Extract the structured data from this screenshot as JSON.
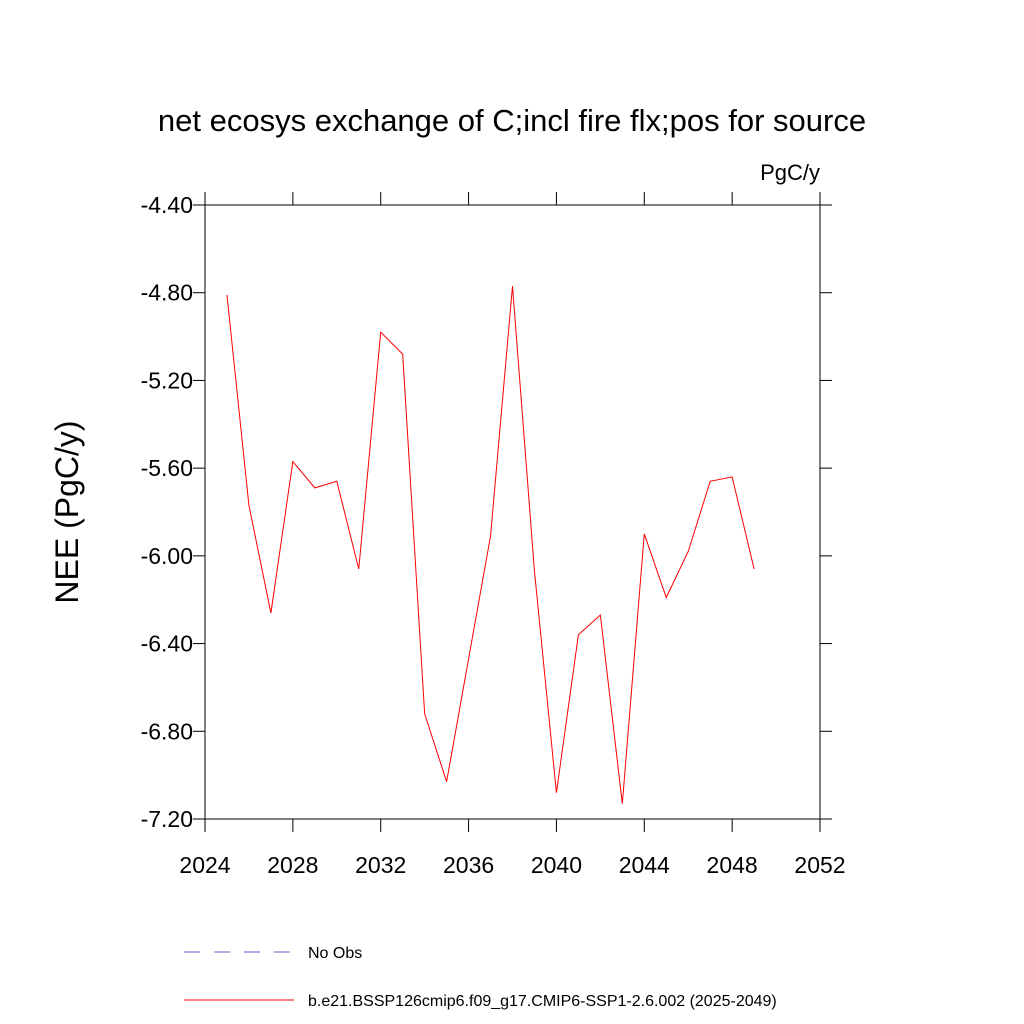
{
  "chart_data": {
    "type": "line",
    "title": "net ecosys exchange of C;incl fire flx;pos for source",
    "units": "PgC/y",
    "y_label": "NEE  (PgC/y)",
    "x": [
      2025,
      2026,
      2027,
      2028,
      2029,
      2030,
      2031,
      2032,
      2033,
      2034,
      2035,
      2036,
      2037,
      2038,
      2039,
      2040,
      2041,
      2042,
      2043,
      2044,
      2045,
      2046,
      2047,
      2048,
      2049
    ],
    "series": [
      {
        "name": "No Obs",
        "color": "#6a5acd",
        "dashed": true,
        "values": [
          null,
          null,
          null,
          null,
          null,
          null,
          null,
          null,
          null,
          null,
          null,
          null,
          null,
          null,
          null,
          null,
          null,
          null,
          null,
          null,
          null,
          null,
          null,
          null,
          null
        ]
      },
      {
        "name": "b.e21.BSSP126cmip6.f09_g17.CMIP6-SSP1-2.6.002 (2025-2049)",
        "color": "#ff0000",
        "dashed": false,
        "values": [
          -4.81,
          -5.77,
          -6.26,
          -5.57,
          -5.69,
          -5.66,
          -6.06,
          -4.98,
          -5.08,
          -6.72,
          -7.03,
          -6.47,
          -5.91,
          -4.77,
          -6.07,
          -7.08,
          -6.36,
          -6.27,
          -7.13,
          -5.9,
          -6.19,
          -5.98,
          -5.66,
          -5.64,
          -6.06
        ]
      }
    ],
    "xlim": [
      2024,
      2052
    ],
    "xticks": [
      2024,
      2028,
      2032,
      2036,
      2040,
      2044,
      2048,
      2052
    ],
    "ylim": [
      -7.2,
      -4.4
    ],
    "yticks": [
      {
        "value": -7.2,
        "label": "-7.20"
      },
      {
        "value": -6.8,
        "label": "-6.80"
      },
      {
        "value": -6.4,
        "label": "-6.40"
      },
      {
        "value": -6.0,
        "label": "-6.00"
      },
      {
        "value": -5.6,
        "label": "-5.60"
      },
      {
        "value": -5.2,
        "label": "-5.20"
      },
      {
        "value": -4.8,
        "label": "-4.80"
      },
      {
        "value": -4.4,
        "label": "-4.40"
      }
    ],
    "grid": false
  }
}
